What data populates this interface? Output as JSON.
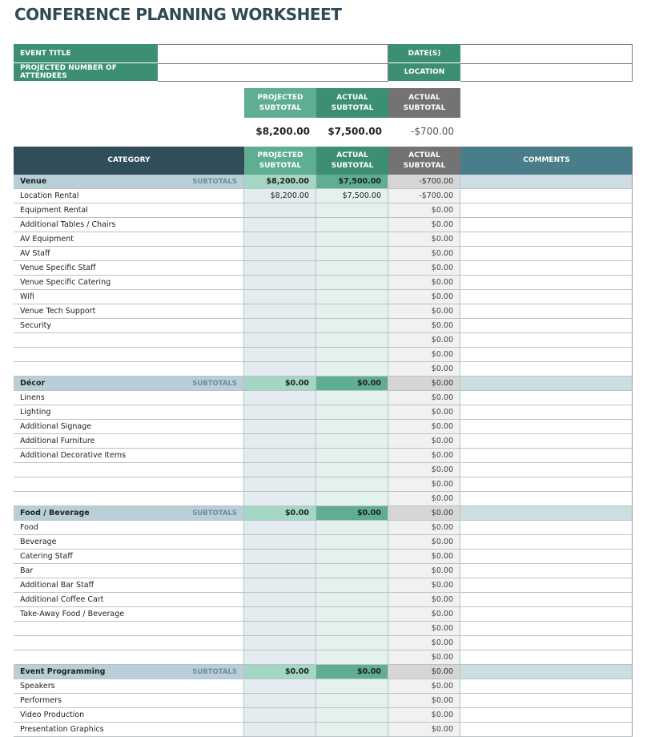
{
  "title": "CONFERENCE PLANNING WORKSHEET",
  "info": {
    "event_title": "EVENT TITLE",
    "attendees": "PROJECTED NUMBER OF ATTENDEES",
    "dates": "DATE(S)",
    "location": "LOCATION",
    "event_title_value": "",
    "attendees_value": "",
    "dates_value": "",
    "location_value": ""
  },
  "summary": {
    "projected_label": "PROJECTED SUBTOTAL",
    "actual_label": "ACTUAL SUBTOTAL",
    "diff_label": "ACTUAL SUBTOTAL",
    "projected": "$8,200.00",
    "actual": "$7,500.00",
    "diff": "-$700.00"
  },
  "colors": {
    "green": "#3d8f74",
    "light_green": "#5fae94",
    "gray": "#737373",
    "dark": "#2f4e5a",
    "comments": "#4a7d8a"
  },
  "table": {
    "headers": {
      "category": "CATEGORY",
      "projected": "PROJECTED SUBTOTAL",
      "actual": "ACTUAL SUBTOTAL",
      "diff": "ACTUAL SUBTOTAL",
      "comments": "COMMENTS"
    },
    "subtotals_label": "SUBTOTALS",
    "sections": [
      {
        "name": "Venue",
        "projected": "$8,200.00",
        "actual": "$7,500.00",
        "diff": "-$700.00",
        "items": [
          {
            "name": "Location Rental",
            "projected": "$8,200.00",
            "actual": "$7,500.00",
            "diff": "-$700.00"
          },
          {
            "name": "Equipment Rental",
            "projected": "",
            "actual": "",
            "diff": "$0.00"
          },
          {
            "name": "Additional Tables / Chairs",
            "projected": "",
            "actual": "",
            "diff": "$0.00"
          },
          {
            "name": "AV Equipment",
            "projected": "",
            "actual": "",
            "diff": "$0.00"
          },
          {
            "name": "AV Staff",
            "projected": "",
            "actual": "",
            "diff": "$0.00"
          },
          {
            "name": "Venue Specific Staff",
            "projected": "",
            "actual": "",
            "diff": "$0.00"
          },
          {
            "name": "Venue Specific Catering",
            "projected": "",
            "actual": "",
            "diff": "$0.00"
          },
          {
            "name": "Wifi",
            "projected": "",
            "actual": "",
            "diff": "$0.00"
          },
          {
            "name": "Venue Tech Support",
            "projected": "",
            "actual": "",
            "diff": "$0.00"
          },
          {
            "name": "Security",
            "projected": "",
            "actual": "",
            "diff": "$0.00"
          },
          {
            "name": "",
            "projected": "",
            "actual": "",
            "diff": "$0.00"
          },
          {
            "name": "",
            "projected": "",
            "actual": "",
            "diff": "$0.00"
          },
          {
            "name": "",
            "projected": "",
            "actual": "",
            "diff": "$0.00"
          }
        ]
      },
      {
        "name": "Décor",
        "projected": "$0.00",
        "actual": "$0.00",
        "diff": "$0.00",
        "items": [
          {
            "name": "Linens",
            "projected": "",
            "actual": "",
            "diff": "$0.00"
          },
          {
            "name": "Lighting",
            "projected": "",
            "actual": "",
            "diff": "$0.00"
          },
          {
            "name": "Additional Signage",
            "projected": "",
            "actual": "",
            "diff": "$0.00"
          },
          {
            "name": "Additional Furniture",
            "projected": "",
            "actual": "",
            "diff": "$0.00"
          },
          {
            "name": "Additional Decorative Items",
            "projected": "",
            "actual": "",
            "diff": "$0.00"
          },
          {
            "name": "",
            "projected": "",
            "actual": "",
            "diff": "$0.00"
          },
          {
            "name": "",
            "projected": "",
            "actual": "",
            "diff": "$0.00"
          },
          {
            "name": "",
            "projected": "",
            "actual": "",
            "diff": "$0.00"
          }
        ]
      },
      {
        "name": "Food / Beverage",
        "projected": "$0.00",
        "actual": "$0.00",
        "diff": "$0.00",
        "items": [
          {
            "name": "Food",
            "projected": "",
            "actual": "",
            "diff": "$0.00"
          },
          {
            "name": "Beverage",
            "projected": "",
            "actual": "",
            "diff": "$0.00"
          },
          {
            "name": "Catering Staff",
            "projected": "",
            "actual": "",
            "diff": "$0.00"
          },
          {
            "name": "Bar",
            "projected": "",
            "actual": "",
            "diff": "$0.00"
          },
          {
            "name": "Additional Bar Staff",
            "projected": "",
            "actual": "",
            "diff": "$0.00"
          },
          {
            "name": "Additional Coffee Cart",
            "projected": "",
            "actual": "",
            "diff": "$0.00"
          },
          {
            "name": "Take-Away Food / Beverage",
            "projected": "",
            "actual": "",
            "diff": "$0.00"
          },
          {
            "name": "",
            "projected": "",
            "actual": "",
            "diff": "$0.00"
          },
          {
            "name": "",
            "projected": "",
            "actual": "",
            "diff": "$0.00"
          },
          {
            "name": "",
            "projected": "",
            "actual": "",
            "diff": "$0.00"
          }
        ]
      },
      {
        "name": "Event Programming",
        "projected": "$0.00",
        "actual": "$0.00",
        "diff": "$0.00",
        "items": [
          {
            "name": "Speakers",
            "projected": "",
            "actual": "",
            "diff": "$0.00"
          },
          {
            "name": "Performers",
            "projected": "",
            "actual": "",
            "diff": "$0.00"
          },
          {
            "name": "Video Production",
            "projected": "",
            "actual": "",
            "diff": "$0.00"
          },
          {
            "name": "Presentation Graphics",
            "projected": "",
            "actual": "",
            "diff": "$0.00"
          }
        ]
      }
    ]
  }
}
